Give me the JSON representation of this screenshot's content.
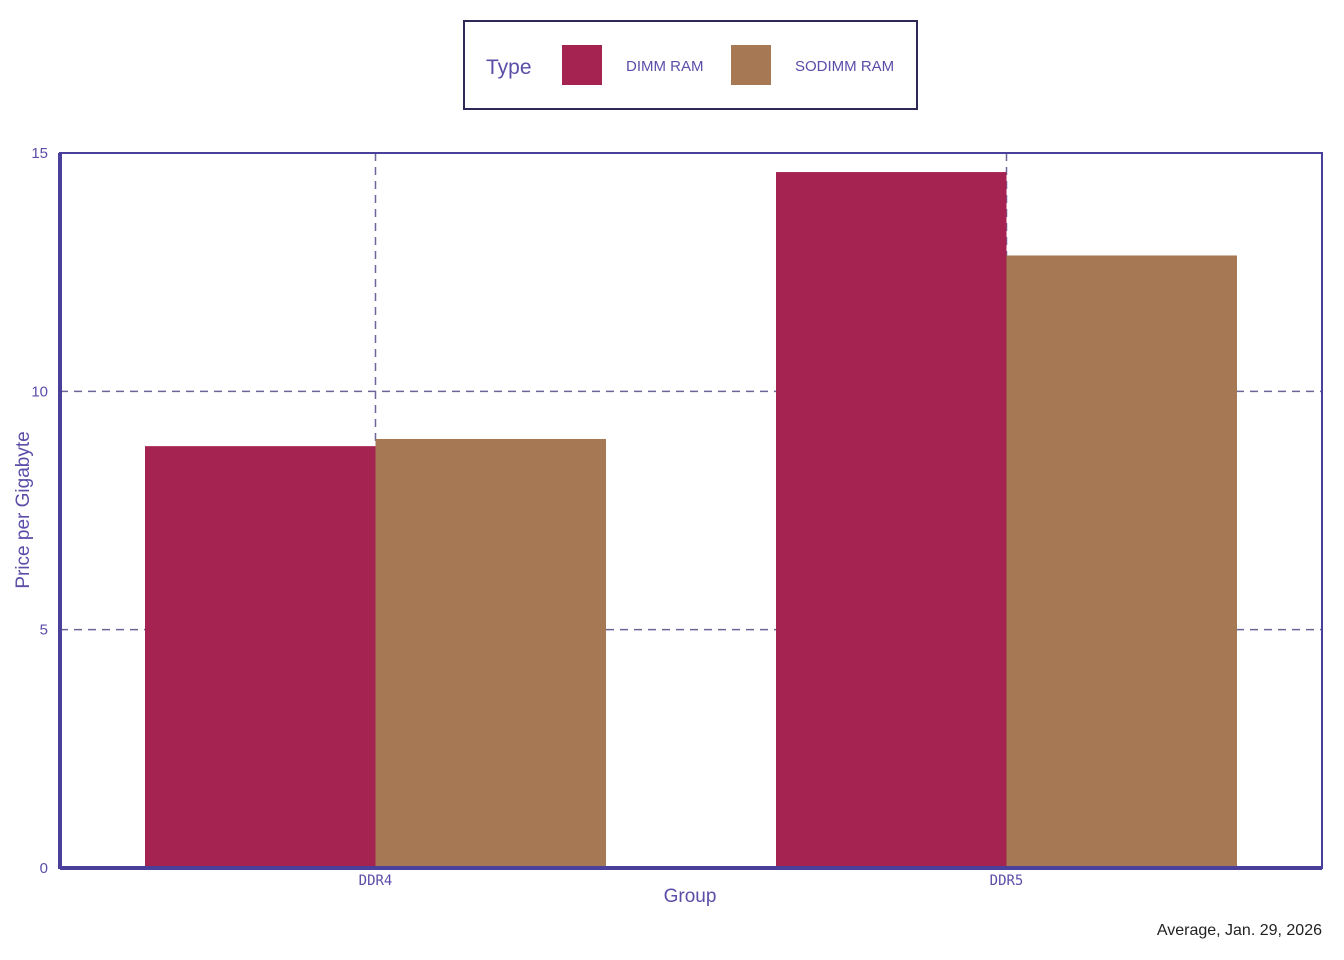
{
  "chart_data": {
    "type": "bar",
    "categories": [
      "DDR4",
      "DDR5"
    ],
    "series": [
      {
        "name": "DIMM RAM",
        "values": [
          8.85,
          14.6
        ]
      },
      {
        "name": "SODIMM RAM",
        "values": [
          9.0,
          12.85
        ]
      }
    ],
    "xlabel": "Group",
    "ylabel": "Price per Gigabyte",
    "ylim": [
      0,
      15
    ],
    "yticks": [
      0,
      5,
      10,
      15
    ],
    "grid": true,
    "legend": {
      "title": "Type",
      "placement": "top-center"
    },
    "annotation": "Average, Jan. 29, 2026"
  },
  "colors": {
    "axis": "#4a3f9a",
    "text": "#5a4ea8",
    "grid": "#6b6699",
    "series": [
      "#a52350",
      "#a67853"
    ]
  }
}
